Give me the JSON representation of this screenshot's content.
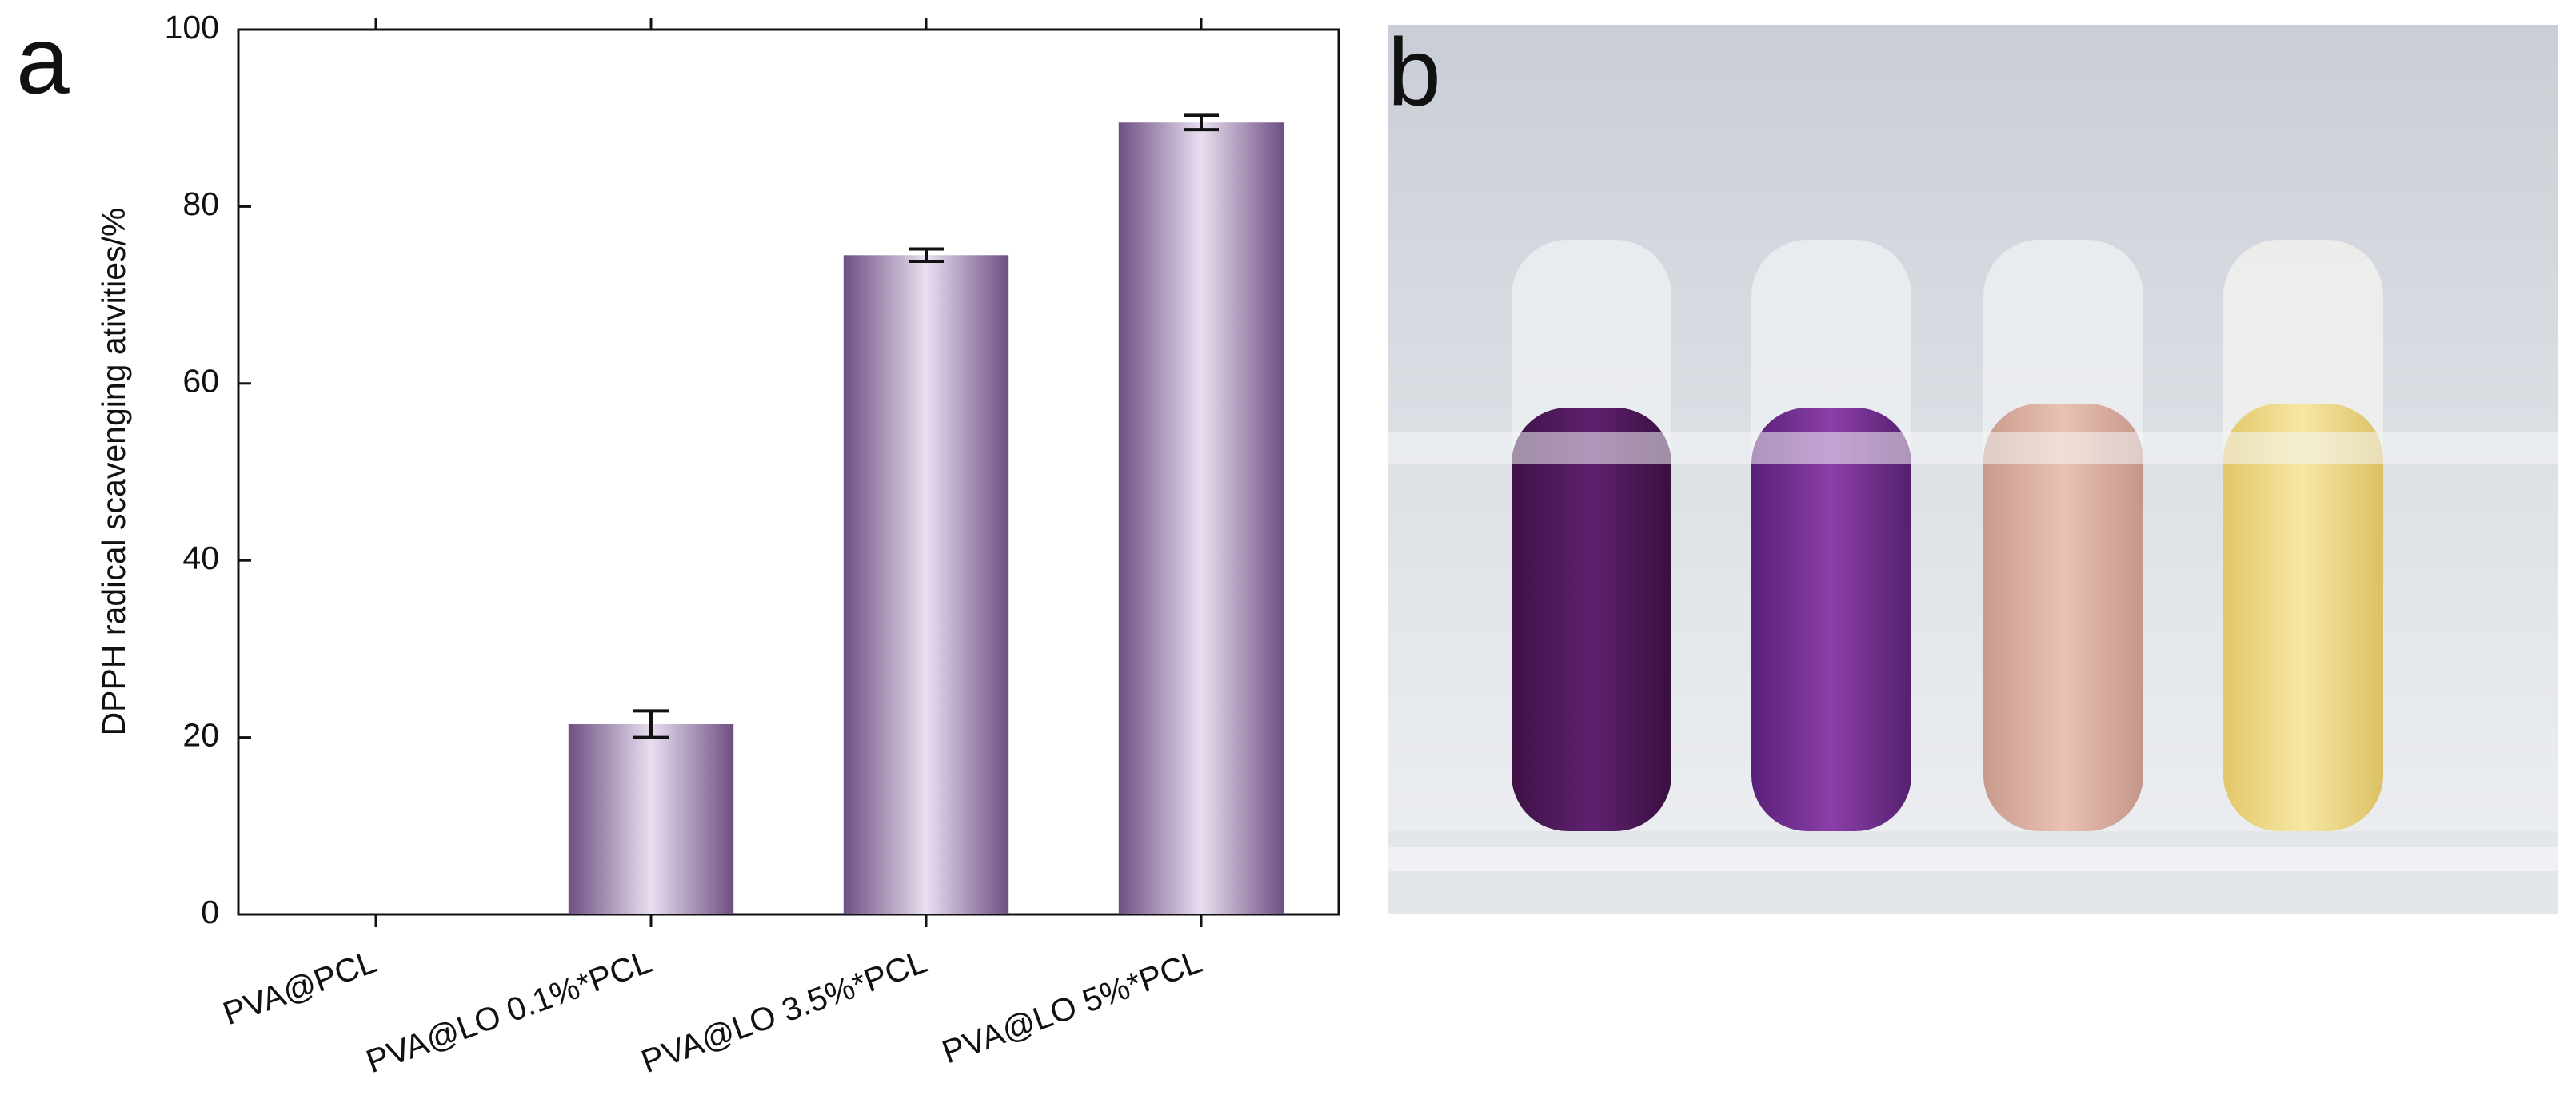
{
  "chart_data": {
    "type": "bar",
    "panel_label": "a",
    "ylabel": "DPPH radical scavenging ativities/%",
    "categories": [
      "PVA@PCL",
      "PVA@LO 0.1%*PCL",
      "PVA@LO 3.5%*PCL",
      "PVA@LO 5%*PCL"
    ],
    "values": [
      0,
      21.5,
      74.5,
      89.5
    ],
    "errors": [
      null,
      1.5,
      0.7,
      0.8
    ],
    "color": "#7b5d8e",
    "ylim": [
      0,
      100
    ],
    "yticks": [
      0,
      20,
      40,
      60,
      80,
      100
    ],
    "grid": false
  },
  "photo": {
    "panel_label": "b"
  }
}
